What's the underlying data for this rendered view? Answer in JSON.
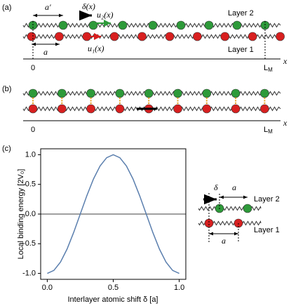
{
  "panel_a": {
    "label": "(a)",
    "a_prime": "a'",
    "delta": "δ(x)",
    "u2": "u₂(x)",
    "u1": "u₁(x)",
    "a": "a",
    "layer2": "Layer 2",
    "layer1": "Layer 1",
    "origin": "0",
    "end": {
      "main": "L",
      "sub": "M"
    },
    "axis": "x"
  },
  "panel_b": {
    "label": "(b)",
    "origin": "0",
    "end": {
      "main": "L",
      "sub": "M"
    },
    "axis": "x"
  },
  "panel_c": {
    "label": "(c)"
  },
  "chart_data": {
    "type": "line",
    "x_label": "Interlayer atomic shift δ [a]",
    "y_label": "Local binding energy [2V₀]",
    "color": "#5b7fae",
    "x": [
      0,
      0.05,
      0.1,
      0.15,
      0.2,
      0.25,
      0.3,
      0.35,
      0.4,
      0.45,
      0.5,
      0.55,
      0.6,
      0.65,
      0.7,
      0.75,
      0.8,
      0.85,
      0.9,
      0.95,
      1
    ],
    "values": [
      -1,
      -0.95,
      -0.81,
      -0.59,
      -0.31,
      0,
      0.31,
      0.59,
      0.81,
      0.95,
      1,
      0.95,
      0.81,
      0.59,
      0.31,
      0,
      -0.31,
      -0.59,
      -0.81,
      -0.95,
      -1
    ],
    "xlim": [
      -0.05,
      1.05
    ],
    "ylim": [
      -1.1,
      1.1
    ],
    "xticks": [
      {
        "value": 0,
        "label": "0.0"
      },
      {
        "value": 0.5,
        "label": "0.5"
      },
      {
        "value": 1,
        "label": "1.0"
      }
    ],
    "yticks": [
      {
        "value": -1,
        "label": "-1.0"
      },
      {
        "value": -0.5,
        "label": "-0.5"
      },
      {
        "value": 0,
        "label": "0.0"
      },
      {
        "value": 0.5,
        "label": "0.5"
      },
      {
        "value": 1,
        "label": "1.0"
      }
    ],
    "reference_line": 0
  },
  "inset": {
    "delta": "δ",
    "a_top": "a",
    "layer2": "Layer 2",
    "layer1": "Layer 1",
    "a_bottom": "a"
  }
}
